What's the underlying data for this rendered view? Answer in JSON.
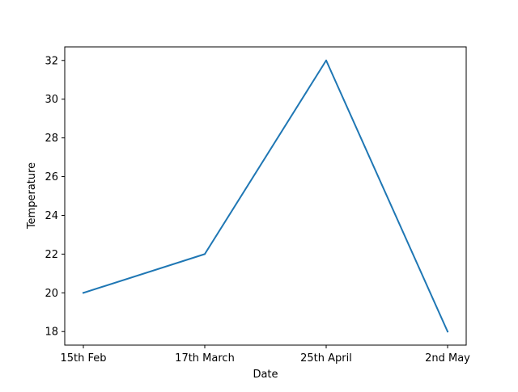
{
  "chart_data": {
    "type": "line",
    "title": "",
    "xlabel": "Date",
    "ylabel": "Temperature",
    "categories": [
      "15th Feb",
      "17th March",
      "25th April",
      "2nd May"
    ],
    "series": [
      {
        "values": [
          20,
          22,
          32,
          18
        ],
        "color": "#1f77b4"
      }
    ],
    "ylim": [
      17.3,
      32.7
    ],
    "yticks": [
      18,
      20,
      22,
      24,
      26,
      28,
      30,
      32
    ],
    "grid": false,
    "legend": "none"
  }
}
